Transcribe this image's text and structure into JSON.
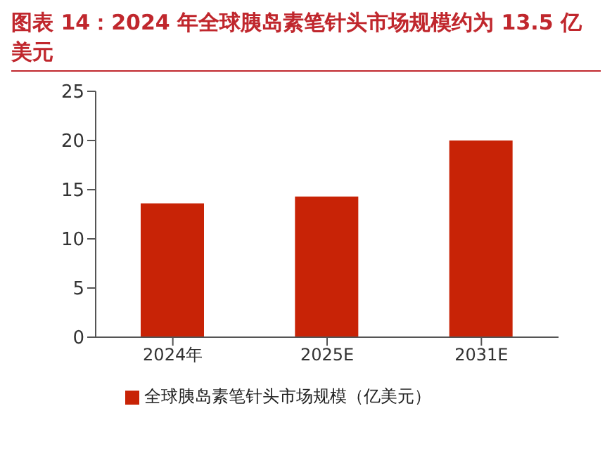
{
  "chart_data": {
    "type": "bar",
    "title": "图表 14：2024 年全球胰岛素笔针头市场规模约为 13.5 亿美元",
    "categories": [
      "2024年",
      "2025E",
      "2031E"
    ],
    "series": [
      {
        "name": "全球胰岛素笔针头市场规模（亿美元）",
        "color": "#c82306",
        "values": [
          13.6,
          14.3,
          20.0
        ]
      }
    ],
    "ylim": [
      0,
      25
    ],
    "yticks": [
      0,
      5,
      10,
      15,
      20,
      25
    ],
    "grid": false,
    "legend": "bottom"
  }
}
